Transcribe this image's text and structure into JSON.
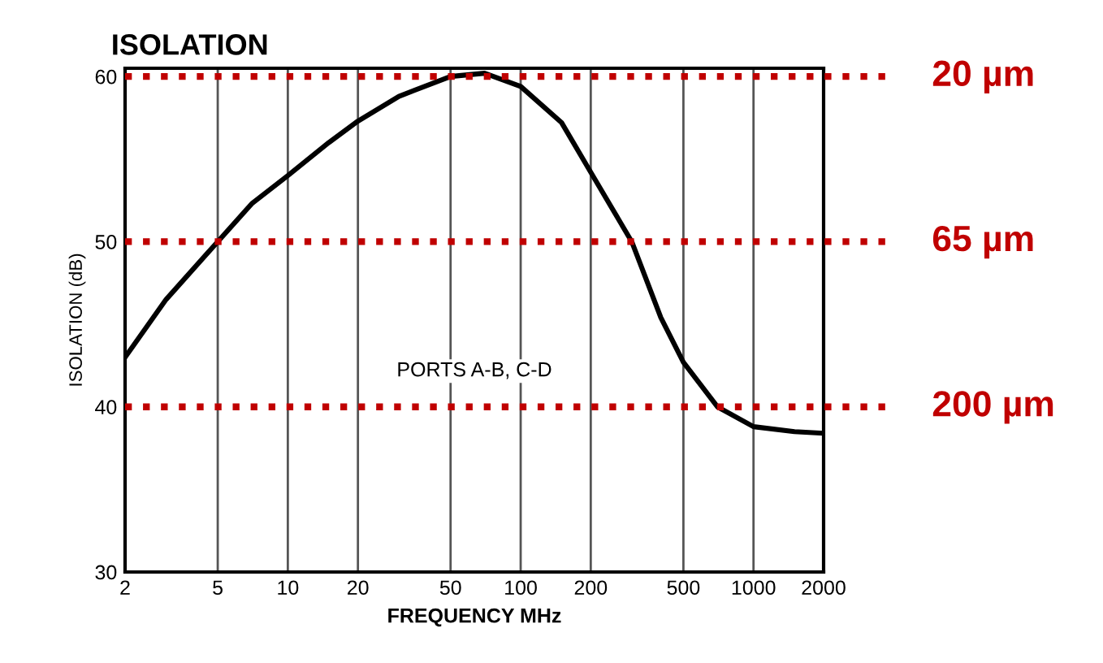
{
  "chart_data": {
    "type": "line",
    "title": "ISOLATION",
    "xlabel": "FREQUENCY MHz",
    "ylabel": "ISOLATION (dB)",
    "x": [
      2,
      3,
      5,
      7,
      10,
      15,
      20,
      30,
      50,
      70,
      100,
      150,
      200,
      300,
      400,
      500,
      700,
      1000,
      1500,
      2000
    ],
    "series": [
      {
        "color": "#000000",
        "values": [
          43,
          46.5,
          50,
          52.3,
          54,
          56,
          57.3,
          58.8,
          60,
          60.2,
          59.4,
          57.2,
          54.2,
          50,
          45.4,
          42.7,
          40,
          38.8,
          38.5,
          38.4
        ]
      }
    ],
    "log": "x",
    "xlim": [
      2,
      2000
    ],
    "ylim": [
      30,
      60.5
    ],
    "xticks": [
      2,
      5,
      10,
      20,
      50,
      100,
      200,
      500,
      1000,
      2000
    ],
    "yticks": [
      30,
      40,
      50,
      60
    ],
    "grid": "x",
    "marker": "none",
    "line_style": "solid",
    "annotations": [
      "PORTS A-B, C-D"
    ],
    "ref_lines": [
      {
        "axis": "y",
        "value": 60,
        "label": "20 µm",
        "color": "#c00000",
        "line_style": "dotted"
      },
      {
        "axis": "y",
        "value": 50,
        "label": "65 µm",
        "color": "#c00000",
        "line_style": "dotted"
      },
      {
        "axis": "y",
        "value": 40,
        "label": "200 µm",
        "color": "#c00000",
        "line_style": "dotted"
      }
    ]
  }
}
